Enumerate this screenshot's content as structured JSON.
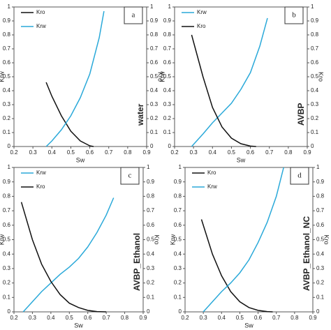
{
  "chart_data": [
    {
      "type": "line",
      "label": "a",
      "annotation": "water",
      "annotation_color": "#f0b400",
      "xlabel": "Sw",
      "ylabel": "Krw",
      "y2label": "Kro",
      "xlim": [
        0.2,
        0.9
      ],
      "xticks": [
        0.2,
        0.3,
        0.4,
        0.5,
        0.6,
        0.7,
        0.8,
        0.9
      ],
      "ylim": [
        0,
        1
      ],
      "yticks": [
        0,
        0.1,
        0.2,
        0.3,
        0.4,
        0.5,
        0.6,
        0.7,
        0.8,
        0.9,
        1
      ],
      "y2lim": [
        0,
        1
      ],
      "y2ticks": [
        0,
        0.1,
        0.2,
        0.3,
        0.4,
        0.5,
        0.6,
        0.7,
        0.8,
        0.9,
        1
      ],
      "series": [
        {
          "name": "Kro",
          "color": "#111111",
          "axis": "y2",
          "x": [
            0.37,
            0.4,
            0.45,
            0.5,
            0.55,
            0.6,
            0.62
          ],
          "values": [
            0.46,
            0.36,
            0.22,
            0.11,
            0.04,
            0.005,
            0
          ]
        },
        {
          "name": "Krw",
          "color": "#2aa9d9",
          "x": [
            0.37,
            0.4,
            0.45,
            0.5,
            0.55,
            0.6,
            0.65,
            0.675
          ],
          "values": [
            0,
            0.04,
            0.12,
            0.22,
            0.35,
            0.52,
            0.78,
            0.97
          ]
        }
      ]
    },
    {
      "type": "line",
      "label": "b",
      "annotation": "AVBP",
      "annotation_color": "#f0b400",
      "xlabel": "Sw",
      "ylabel": "Krw",
      "y2label": "Kro",
      "xlim": [
        0.2,
        0.9
      ],
      "xticks": [
        0.2,
        0.3,
        0.4,
        0.5,
        0.6,
        0.7,
        0.8,
        0.9
      ],
      "ylim": [
        0,
        1
      ],
      "yticks": [
        0,
        0.1,
        0.2,
        0.3,
        0.4,
        0.5,
        0.6,
        0.7,
        0.8,
        0.9,
        1
      ],
      "y2lim": [
        0,
        1
      ],
      "y2ticks": [
        0,
        0.1,
        0.2,
        0.3,
        0.4,
        0.5,
        0.6,
        0.7,
        0.8,
        0.9,
        1
      ],
      "series": [
        {
          "name": "Krw",
          "color": "#2aa9d9",
          "x": [
            0.29,
            0.35,
            0.4,
            0.45,
            0.5,
            0.55,
            0.6,
            0.65,
            0.69
          ],
          "values": [
            0,
            0.09,
            0.17,
            0.24,
            0.31,
            0.41,
            0.53,
            0.72,
            0.92
          ]
        },
        {
          "name": "Kro",
          "color": "#111111",
          "axis": "y2",
          "x": [
            0.29,
            0.35,
            0.4,
            0.45,
            0.5,
            0.55,
            0.6,
            0.63
          ],
          "values": [
            0.8,
            0.5,
            0.28,
            0.14,
            0.06,
            0.02,
            0.003,
            0
          ]
        }
      ]
    },
    {
      "type": "line",
      "label": "c",
      "annotation": "AVBP_Ethanol",
      "annotation_color": "#f0b400",
      "xlabel": "Sw",
      "ylabel": "Krw",
      "y2label": "Kro",
      "xlim": [
        0.2,
        0.9
      ],
      "xticks": [
        0.2,
        0.3,
        0.4,
        0.5,
        0.6,
        0.7,
        0.8,
        0.9
      ],
      "ylim": [
        0,
        1
      ],
      "yticks": [
        0,
        0.1,
        0.2,
        0.3,
        0.4,
        0.5,
        0.6,
        0.7,
        0.8,
        0.9,
        1
      ],
      "y2lim": [
        0,
        1
      ],
      "y2ticks": [
        0,
        0.1,
        0.2,
        0.3,
        0.4,
        0.5,
        0.6,
        0.7,
        0.8,
        0.9,
        1
      ],
      "series": [
        {
          "name": "Krw",
          "color": "#2aa9d9",
          "x": [
            0.25,
            0.3,
            0.35,
            0.4,
            0.45,
            0.5,
            0.55,
            0.6,
            0.65,
            0.7,
            0.74
          ],
          "values": [
            0,
            0.07,
            0.14,
            0.2,
            0.26,
            0.31,
            0.37,
            0.45,
            0.55,
            0.67,
            0.79
          ]
        },
        {
          "name": "Kro",
          "color": "#111111",
          "axis": "y2",
          "x": [
            0.24,
            0.3,
            0.35,
            0.4,
            0.45,
            0.5,
            0.55,
            0.6,
            0.65,
            0.7
          ],
          "values": [
            0.76,
            0.5,
            0.33,
            0.21,
            0.12,
            0.06,
            0.03,
            0.01,
            0.002,
            0
          ]
        }
      ]
    },
    {
      "type": "line",
      "label": "d",
      "annotation": "AVBP_Ethanol_NC",
      "annotation_color": "#f0b400",
      "xlabel": "Sw",
      "ylabel": "Krw",
      "y2label": "Kro",
      "xlim": [
        0.2,
        0.9
      ],
      "xticks": [
        0.2,
        0.3,
        0.4,
        0.5,
        0.6,
        0.7,
        0.8,
        0.9
      ],
      "ylim": [
        0,
        1
      ],
      "yticks": [
        0,
        0.1,
        0.2,
        0.3,
        0.4,
        0.5,
        0.6,
        0.7,
        0.8,
        0.9,
        1
      ],
      "y2lim": [
        0,
        1
      ],
      "y2ticks": [
        0,
        0.1,
        0.2,
        0.3,
        0.4,
        0.5,
        0.6,
        0.7,
        0.8,
        0.9,
        1
      ],
      "series": [
        {
          "name": "Kro",
          "color": "#111111",
          "axis": "y2",
          "x": [
            0.29,
            0.35,
            0.4,
            0.45,
            0.5,
            0.55,
            0.6,
            0.65,
            0.68
          ],
          "values": [
            0.64,
            0.4,
            0.25,
            0.14,
            0.07,
            0.03,
            0.01,
            0.002,
            0
          ]
        },
        {
          "name": "Krw",
          "color": "#2aa9d9",
          "x": [
            0.3,
            0.35,
            0.4,
            0.45,
            0.5,
            0.55,
            0.6,
            0.65,
            0.7,
            0.74
          ],
          "values": [
            0,
            0.07,
            0.14,
            0.2,
            0.27,
            0.36,
            0.48,
            0.62,
            0.8,
            1.0
          ]
        }
      ]
    }
  ]
}
